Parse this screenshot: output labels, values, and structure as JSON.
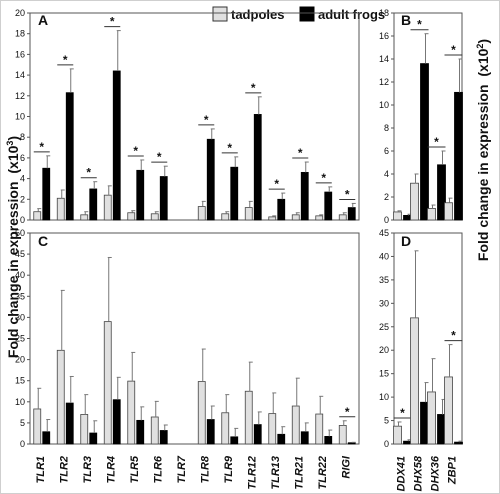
{
  "ylabel": "Fold change in expression",
  "ylabel_units": [
    "(x10",
    "3",
    ")",
    "(x10",
    "2",
    ")"
  ],
  "legend": [
    {
      "label": "tadpoles",
      "color": "#e0e0e0"
    },
    {
      "label": "adult frogs",
      "color": "#000000"
    }
  ],
  "significance_mark": "*",
  "chart_data": [
    {
      "panel": "A",
      "type": "bar",
      "categories": [
        "TLR1",
        "TLR2",
        "TLR3",
        "TLR4",
        "TLR5",
        "TLR6",
        "TLR7",
        "TLR8",
        "TLR9",
        "TLR12",
        "TLR13",
        "TLR21",
        "TLR22",
        "RIGI"
      ],
      "ylim": [
        0,
        20
      ],
      "yticks": [
        "0",
        "2",
        "4",
        "6",
        "8",
        "10",
        "12",
        "14",
        "16",
        "18",
        "20"
      ],
      "series": [
        {
          "values": [
            0.8,
            2.1,
            0.5,
            2.4,
            0.7,
            0.6,
            0.0,
            1.3,
            0.6,
            1.2,
            0.3,
            0.5,
            0.4,
            0.5
          ],
          "errors": [
            0.3,
            0.8,
            0.3,
            0.9,
            0.2,
            0.2,
            0.0,
            0.5,
            0.2,
            0.6,
            0.1,
            0.2,
            0.1,
            0.2
          ]
        },
        {
          "values": [
            5.0,
            12.3,
            3.0,
            14.4,
            4.8,
            4.2,
            0.0,
            7.8,
            5.1,
            10.2,
            2.0,
            4.6,
            2.7,
            1.2
          ],
          "errors": [
            1.2,
            2.3,
            0.7,
            3.9,
            1.0,
            1.0,
            0.0,
            1.0,
            1.0,
            1.7,
            0.6,
            1.0,
            0.5,
            0.4
          ]
        }
      ],
      "significant": [
        true,
        true,
        true,
        true,
        true,
        true,
        false,
        true,
        true,
        true,
        true,
        true,
        true,
        true
      ]
    },
    {
      "panel": "B",
      "type": "bar",
      "categories": [
        "DDX41",
        "DHX58",
        "DHX36",
        "ZBP1"
      ],
      "ylim": [
        0,
        18
      ],
      "yticks": [
        "0",
        "2",
        "4",
        "6",
        "8",
        "10",
        "12",
        "14",
        "16",
        "18"
      ],
      "series": [
        {
          "values": [
            0.7,
            3.2,
            1.0,
            1.5
          ],
          "errors": [
            0.1,
            0.8,
            0.3,
            0.4
          ]
        },
        {
          "values": [
            0.4,
            13.6,
            4.8,
            11.1
          ],
          "errors": [
            0.1,
            2.6,
            1.2,
            2.9
          ]
        }
      ],
      "significant": [
        false,
        true,
        true,
        true
      ]
    },
    {
      "panel": "C",
      "type": "bar",
      "categories": [
        "TLR1",
        "TLR2",
        "TLR3",
        "TLR4",
        "TLR5",
        "TLR6",
        "TLR7",
        "TLR8",
        "TLR9",
        "TLR12",
        "TLR13",
        "TLR21",
        "TLR22",
        "RIGI"
      ],
      "ylim": [
        0,
        50
      ],
      "yticks": [
        "0",
        "5",
        "10",
        "15",
        "20",
        "25",
        "30",
        "35",
        "40",
        "45",
        "50"
      ],
      "series": [
        {
          "values": [
            8.3,
            22.2,
            7.0,
            29.0,
            14.9,
            6.4,
            0.0,
            14.8,
            7.4,
            12.5,
            7.2,
            9.0,
            7.1,
            4.4
          ],
          "errors": [
            4.9,
            14.2,
            4.7,
            15.2,
            6.8,
            3.7,
            0.0,
            7.7,
            4.3,
            6.9,
            4.9,
            6.6,
            4.2,
            1.1
          ]
        },
        {
          "values": [
            2.9,
            9.7,
            2.6,
            10.5,
            5.6,
            3.2,
            0.0,
            5.8,
            1.7,
            4.6,
            2.3,
            2.9,
            1.8,
            0.3
          ],
          "errors": [
            2.9,
            6.3,
            2.9,
            5.3,
            3.2,
            1.3,
            0.0,
            3.2,
            2.0,
            3.0,
            1.8,
            2.1,
            1.5,
            0.1
          ]
        }
      ],
      "significant": [
        false,
        false,
        false,
        false,
        false,
        false,
        false,
        false,
        false,
        false,
        false,
        false,
        false,
        true
      ]
    },
    {
      "panel": "D",
      "type": "bar",
      "categories": [
        "DDX41",
        "DHX58",
        "DHX36",
        "ZBP1"
      ],
      "ylim": [
        0,
        45
      ],
      "yticks": [
        "0",
        "5",
        "10",
        "15",
        "20",
        "25",
        "30",
        "35",
        "40",
        "45"
      ],
      "series": [
        {
          "values": [
            3.8,
            26.9,
            11.1,
            14.3
          ],
          "errors": [
            0.9,
            14.3,
            7.1,
            6.9
          ]
        },
        {
          "values": [
            0.6,
            8.9,
            6.3,
            0.4
          ],
          "errors": [
            0.3,
            4.2,
            3.2,
            0.2
          ]
        }
      ],
      "significant": [
        true,
        false,
        false,
        true
      ]
    }
  ]
}
